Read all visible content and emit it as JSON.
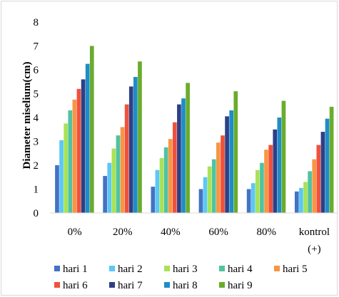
{
  "chart_data": {
    "type": "bar",
    "title": "",
    "xlabel": "",
    "ylabel": "Diameter miselium(cm)",
    "ylim": [
      0,
      8
    ],
    "yticks": [
      0,
      1,
      2,
      3,
      4,
      5,
      6,
      7,
      8
    ],
    "grid": false,
    "legend_position": "bottom",
    "categories": [
      {
        "lines": [
          "0%"
        ]
      },
      {
        "lines": [
          "20%"
        ]
      },
      {
        "lines": [
          "40%"
        ]
      },
      {
        "lines": [
          "60%"
        ]
      },
      {
        "lines": [
          "80%"
        ]
      },
      {
        "lines": [
          "kontrol",
          "(+)"
        ]
      }
    ],
    "series": [
      {
        "name": "hari 1",
        "color": "#4472C4",
        "values": [
          2.0,
          1.55,
          1.1,
          1.0,
          1.0,
          0.9
        ]
      },
      {
        "name": "hari 2",
        "color": "#5BC8F5",
        "values": [
          3.05,
          2.1,
          1.8,
          1.5,
          1.25,
          1.05
        ]
      },
      {
        "name": "hari 3",
        "color": "#A9E256",
        "values": [
          3.75,
          2.7,
          2.3,
          1.95,
          1.8,
          1.3
        ]
      },
      {
        "name": "hari 4",
        "color": "#50C3A0",
        "values": [
          4.3,
          3.25,
          2.75,
          2.25,
          2.1,
          1.75
        ]
      },
      {
        "name": "hari 5",
        "color": "#F79646",
        "values": [
          4.75,
          3.6,
          3.1,
          2.95,
          2.65,
          2.25
        ]
      },
      {
        "name": "hari 6",
        "color": "#F0513C",
        "values": [
          5.2,
          4.55,
          3.8,
          3.25,
          2.85,
          2.85
        ]
      },
      {
        "name": "hari 7",
        "color": "#2E3F86",
        "values": [
          5.6,
          5.3,
          4.55,
          4.05,
          3.5,
          3.4
        ]
      },
      {
        "name": "hari 8",
        "color": "#1E8DC8",
        "values": [
          6.25,
          5.7,
          4.8,
          4.3,
          4.0,
          3.95
        ]
      },
      {
        "name": "hari 9",
        "color": "#6AAC2E",
        "values": [
          7.0,
          6.35,
          5.45,
          5.1,
          4.7,
          4.45
        ]
      }
    ]
  }
}
